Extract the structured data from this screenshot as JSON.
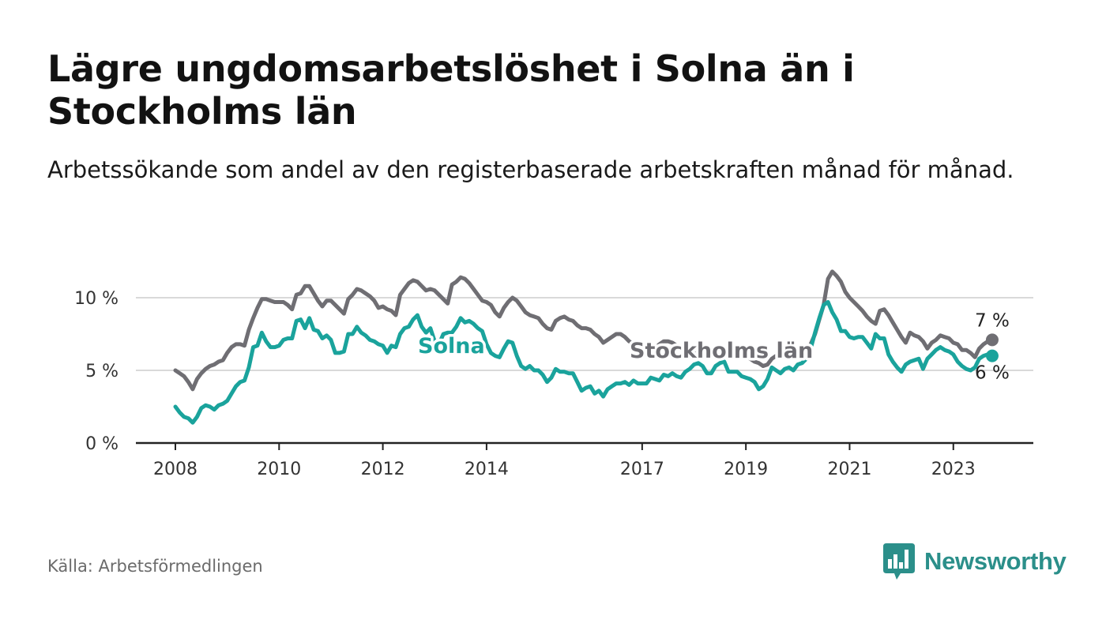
{
  "title": "Lägre ungdomsarbetslöshet i Solna än i Stockholms län",
  "subtitle": "Arbetssökande som andel av den registerbaserade arbetskraften månad för månad.",
  "source": "Källa: Arbetsförmedlingen",
  "brand": {
    "name": "Newsworthy",
    "color": "#2b8f8a"
  },
  "chart_data": {
    "type": "line",
    "x_start": 2008.0,
    "x_step": 0.08333,
    "xlim": [
      2008.0,
      2023.75
    ],
    "ylim": [
      0,
      10
    ],
    "y_ticks": [
      0,
      5,
      10
    ],
    "y_tick_labels": [
      "0 %",
      "5 %",
      "10 %"
    ],
    "x_ticks": [
      2008,
      2010,
      2012,
      2014,
      2017,
      2019,
      2021,
      2023
    ],
    "x_tick_labels": [
      "2008",
      "2010",
      "2012",
      "2014",
      "2017",
      "2019",
      "2021",
      "2023"
    ],
    "grid": true,
    "series": [
      {
        "name": "Stockholms län",
        "label": "Stockholms län",
        "end_label": "7 %",
        "color": "#6f6e73",
        "values": [
          5.0,
          4.8,
          4.6,
          4.2,
          3.7,
          4.4,
          4.8,
          5.1,
          5.3,
          5.4,
          5.6,
          5.7,
          6.2,
          6.6,
          6.8,
          6.8,
          6.7,
          7.8,
          8.6,
          9.3,
          9.9,
          9.9,
          9.8,
          9.7,
          9.7,
          9.7,
          9.5,
          9.2,
          10.2,
          10.3,
          10.8,
          10.8,
          10.3,
          9.8,
          9.4,
          9.8,
          9.8,
          9.5,
          9.2,
          8.9,
          9.9,
          10.2,
          10.6,
          10.5,
          10.3,
          10.1,
          9.8,
          9.3,
          9.4,
          9.2,
          9.1,
          8.8,
          10.2,
          10.6,
          11.0,
          11.2,
          11.1,
          10.8,
          10.5,
          10.6,
          10.5,
          10.2,
          9.9,
          9.6,
          10.9,
          11.1,
          11.4,
          11.3,
          11.0,
          10.6,
          10.2,
          9.8,
          9.7,
          9.5,
          9.0,
          8.7,
          9.3,
          9.7,
          10.0,
          9.8,
          9.4,
          9.0,
          8.8,
          8.7,
          8.6,
          8.2,
          7.9,
          7.8,
          8.4,
          8.6,
          8.7,
          8.5,
          8.4,
          8.1,
          7.9,
          7.9,
          7.8,
          7.5,
          7.3,
          6.9,
          7.1,
          7.3,
          7.5,
          7.5,
          7.3,
          7.0,
          6.8,
          6.6,
          6.6,
          6.5,
          6.4,
          6.5,
          6.8,
          7.0,
          7.0,
          6.9,
          6.7,
          6.5,
          6.4,
          6.4,
          6.2,
          6.0,
          6.1,
          6.2,
          6.4,
          6.5,
          6.4,
          6.3,
          6.2,
          6.3,
          6.2,
          6.1,
          6.0,
          5.8,
          5.6,
          5.5,
          5.3,
          5.4,
          5.8,
          6.0,
          6.1,
          6.0,
          5.9,
          6.0,
          6.2,
          6.3,
          6.5,
          6.8,
          7.5,
          8.5,
          9.5,
          11.3,
          11.8,
          11.5,
          11.1,
          10.4,
          10.0,
          9.7,
          9.4,
          9.1,
          8.7,
          8.4,
          8.2,
          9.1,
          9.2,
          8.8,
          8.3,
          7.8,
          7.3,
          6.9,
          7.6,
          7.4,
          7.3,
          7.0,
          6.5,
          6.9,
          7.1,
          7.4,
          7.3,
          7.2,
          6.9,
          6.8,
          6.4,
          6.4,
          6.2,
          5.9,
          6.5,
          6.8,
          7.0,
          7.1
        ]
      },
      {
        "name": "Solna",
        "label": "Solna",
        "end_label": "6 %",
        "color": "#1aa39c",
        "values": [
          2.5,
          2.1,
          1.8,
          1.7,
          1.4,
          1.8,
          2.4,
          2.6,
          2.5,
          2.3,
          2.6,
          2.7,
          2.9,
          3.4,
          3.9,
          4.2,
          4.3,
          5.2,
          6.6,
          6.7,
          7.6,
          7.0,
          6.6,
          6.6,
          6.7,
          7.1,
          7.2,
          7.2,
          8.4,
          8.5,
          7.9,
          8.6,
          7.8,
          7.7,
          7.2,
          7.4,
          7.1,
          6.2,
          6.2,
          6.3,
          7.5,
          7.5,
          8.0,
          7.6,
          7.4,
          7.1,
          7.0,
          6.8,
          6.7,
          6.2,
          6.7,
          6.6,
          7.5,
          7.9,
          8.0,
          8.5,
          8.8,
          8.0,
          7.6,
          7.9,
          7.0,
          6.8,
          7.5,
          7.6,
          7.6,
          8.0,
          8.6,
          8.3,
          8.4,
          8.2,
          7.9,
          7.7,
          6.8,
          6.2,
          6.0,
          5.9,
          6.5,
          7.0,
          6.9,
          6.0,
          5.3,
          5.1,
          5.3,
          5.0,
          5.0,
          4.7,
          4.2,
          4.5,
          5.1,
          4.9,
          4.9,
          4.8,
          4.8,
          4.2,
          3.6,
          3.8,
          3.9,
          3.4,
          3.6,
          3.2,
          3.7,
          3.9,
          4.1,
          4.1,
          4.2,
          4.0,
          4.3,
          4.1,
          4.1,
          4.1,
          4.5,
          4.4,
          4.3,
          4.7,
          4.6,
          4.8,
          4.6,
          4.5,
          4.9,
          5.1,
          5.4,
          5.5,
          5.3,
          4.8,
          4.8,
          5.3,
          5.5,
          5.6,
          4.9,
          4.9,
          4.9,
          4.6,
          4.5,
          4.4,
          4.2,
          3.7,
          3.9,
          4.4,
          5.2,
          5.0,
          4.8,
          5.1,
          5.2,
          5.0,
          5.4,
          5.5,
          5.8,
          6.5,
          7.6,
          8.6,
          9.5,
          9.7,
          9.0,
          8.5,
          7.7,
          7.7,
          7.3,
          7.2,
          7.3,
          7.3,
          6.9,
          6.5,
          7.5,
          7.2,
          7.2,
          6.1,
          5.6,
          5.2,
          4.9,
          5.4,
          5.6,
          5.7,
          5.8,
          5.1,
          5.8,
          6.1,
          6.4,
          6.6,
          6.4,
          6.3,
          6.1,
          5.6,
          5.3,
          5.1,
          5.0,
          5.2,
          5.8,
          6.0,
          6.1,
          6.0
        ]
      }
    ]
  }
}
